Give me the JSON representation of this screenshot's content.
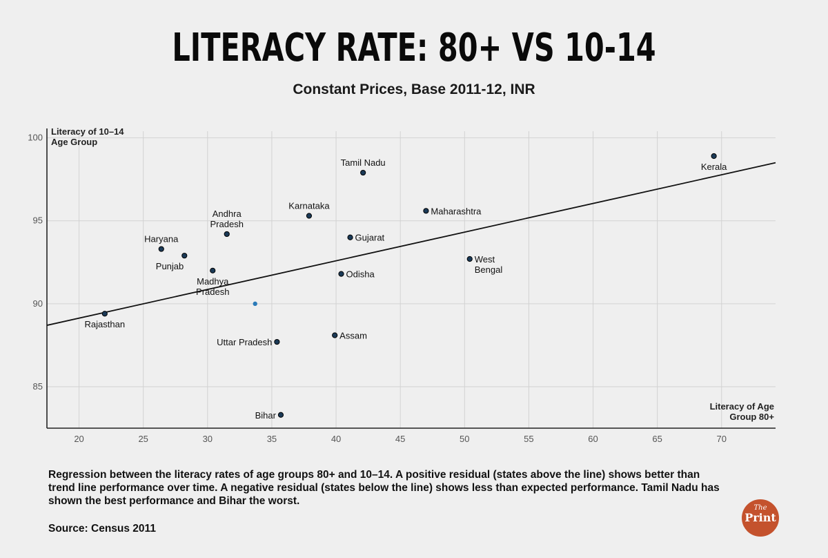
{
  "title": "LITERACY RATE: 80+ VS 10-14",
  "subtitle": "Constant Prices, Base 2011-12, INR",
  "note": "Regression between the literacy rates of age groups 80+ and 10–14. A positive residual (states above the line) shows better than trend line performance over time. A negative residual (states below the line) shows less than expected performance. Tamil Nadu has shown the best performance and Bihar the worst.",
  "source": "Source: Census 2011",
  "logo": {
    "the": "The",
    "print": "Print"
  },
  "colors": {
    "background": "#efefef",
    "point": "#1b3a57",
    "highlight": "#2a7ab8",
    "logo": "#c4522d"
  },
  "chart_data": {
    "type": "scatter",
    "title": "LITERACY RATE: 80+ VS 10-14",
    "subtitle": "Constant Prices, Base 2011-12, INR",
    "xlabel": [
      "Literacy of Age",
      "Group 80+"
    ],
    "ylabel": [
      "Literacy of 10–14",
      "Age Group"
    ],
    "xlim": [
      17.5,
      74.2
    ],
    "ylim": [
      82.5,
      100.4
    ],
    "xticks": [
      20,
      25,
      30,
      35,
      40,
      45,
      50,
      55,
      60,
      65,
      70
    ],
    "yticks": [
      85,
      90,
      95,
      100
    ],
    "grid": true,
    "points": [
      {
        "name": [
          "Kerala"
        ],
        "x": 69.4,
        "y": 98.9,
        "anchor": "below"
      },
      {
        "name": [
          "Tamil Nadu"
        ],
        "x": 42.1,
        "y": 97.9,
        "anchor": "above"
      },
      {
        "name": [
          "Maharashtra"
        ],
        "x": 47.0,
        "y": 95.6,
        "anchor": "right"
      },
      {
        "name": [
          "Karnataka"
        ],
        "x": 37.9,
        "y": 95.3,
        "anchor": "above"
      },
      {
        "name": [
          "Andhra",
          "Pradesh"
        ],
        "x": 31.5,
        "y": 94.2,
        "anchor": "above"
      },
      {
        "name": [
          "Gujarat"
        ],
        "x": 41.1,
        "y": 94.0,
        "anchor": "right"
      },
      {
        "name": [
          "Haryana"
        ],
        "x": 26.4,
        "y": 93.3,
        "anchor": "above"
      },
      {
        "name": [
          "Punjab"
        ],
        "x": 28.2,
        "y": 92.9,
        "anchor": "below-left"
      },
      {
        "name": [
          "West",
          "Bengal"
        ],
        "x": 50.4,
        "y": 92.7,
        "anchor": "right"
      },
      {
        "name": [
          "Madhya",
          "Pradesh"
        ],
        "x": 30.4,
        "y": 92.0,
        "anchor": "below"
      },
      {
        "name": [
          "Odisha"
        ],
        "x": 40.4,
        "y": 91.8,
        "anchor": "right"
      },
      {
        "name": [
          "Rajasthan"
        ],
        "x": 22.0,
        "y": 89.4,
        "anchor": "below"
      },
      {
        "name": [
          "Assam"
        ],
        "x": 39.9,
        "y": 88.1,
        "anchor": "right"
      },
      {
        "name": [
          "Uttar Pradesh"
        ],
        "x": 35.4,
        "y": 87.7,
        "anchor": "left"
      },
      {
        "name": [
          "Bihar"
        ],
        "x": 35.7,
        "y": 83.3,
        "anchor": "left"
      }
    ],
    "mean_point": {
      "x": 33.7,
      "y": 90.0
    },
    "trendline": {
      "x": [
        17.5,
        74.2
      ],
      "y": [
        88.7,
        98.5
      ]
    }
  }
}
